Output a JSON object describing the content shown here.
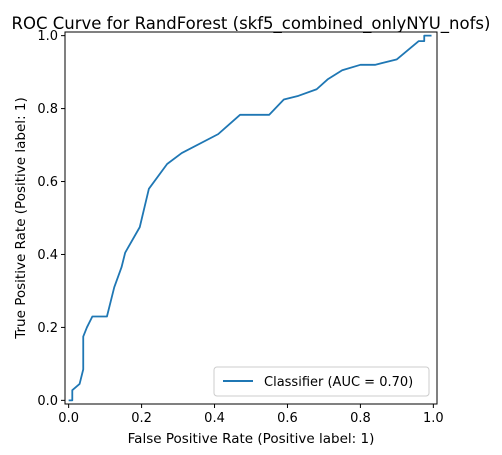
{
  "chart_data": {
    "type": "line",
    "title": "ROC Curve for RandForest (skf5_combined_onlyNYU_nofs)",
    "xlabel": "False Positive Rate (Positive label: 1)",
    "ylabel": "True Positive Rate (Positive label: 1)",
    "xlim": [
      -0.01,
      1.01
    ],
    "ylim": [
      -0.01,
      1.01
    ],
    "xticks": [
      "0.0",
      "0.2",
      "0.4",
      "0.6",
      "0.8",
      "1.0"
    ],
    "yticks": [
      "0.0",
      "0.2",
      "0.4",
      "0.6",
      "0.8",
      "1.0"
    ],
    "grid": false,
    "legend_position": "lower-right",
    "series": [
      {
        "name": "Classifier (AUC = 0.70)",
        "color": "#1f77b4",
        "x": [
          0,
          0.01,
          0.01,
          0.03,
          0.04,
          0.04,
          0.05,
          0.065,
          0.105,
          0.125,
          0.145,
          0.155,
          0.195,
          0.22,
          0.27,
          0.31,
          0.41,
          0.47,
          0.55,
          0.59,
          0.63,
          0.68,
          0.71,
          0.75,
          0.8,
          0.84,
          0.9,
          0.96,
          0.975,
          0.975,
          0.985,
          0.995
        ],
        "y": [
          0,
          0,
          0.028,
          0.045,
          0.085,
          0.175,
          0.2,
          0.23,
          0.23,
          0.31,
          0.365,
          0.405,
          0.475,
          0.58,
          0.648,
          0.678,
          0.73,
          0.783,
          0.783,
          0.825,
          0.835,
          0.853,
          0.88,
          0.905,
          0.92,
          0.92,
          0.935,
          0.985,
          0.985,
          1,
          1,
          1
        ]
      }
    ]
  }
}
